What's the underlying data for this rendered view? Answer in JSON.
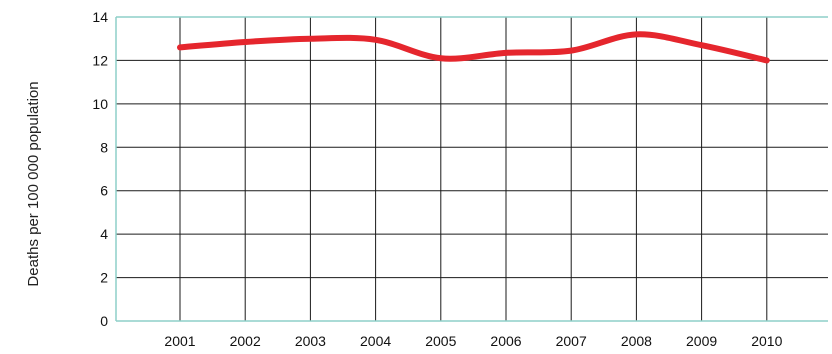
{
  "chart_data": {
    "type": "line",
    "title": "",
    "xlabel": "",
    "ylabel": "Deaths per 100 000 population",
    "categories": [
      "2001",
      "2002",
      "2003",
      "2004",
      "2005",
      "2006",
      "2007",
      "2008",
      "2009",
      "2010"
    ],
    "series": [
      {
        "values": [
          12.6,
          12.85,
          13.0,
          12.95,
          12.1,
          12.35,
          12.45,
          13.2,
          12.7,
          12.0
        ]
      }
    ],
    "ylim": [
      0,
      14
    ],
    "yticks": [
      "0",
      "2",
      "4",
      "6",
      "8",
      "10",
      "12",
      "14"
    ],
    "grid": true,
    "colors": {
      "line": "#e5262d",
      "grid": "#1a1a1a",
      "frame": "#8ecfc8"
    }
  }
}
